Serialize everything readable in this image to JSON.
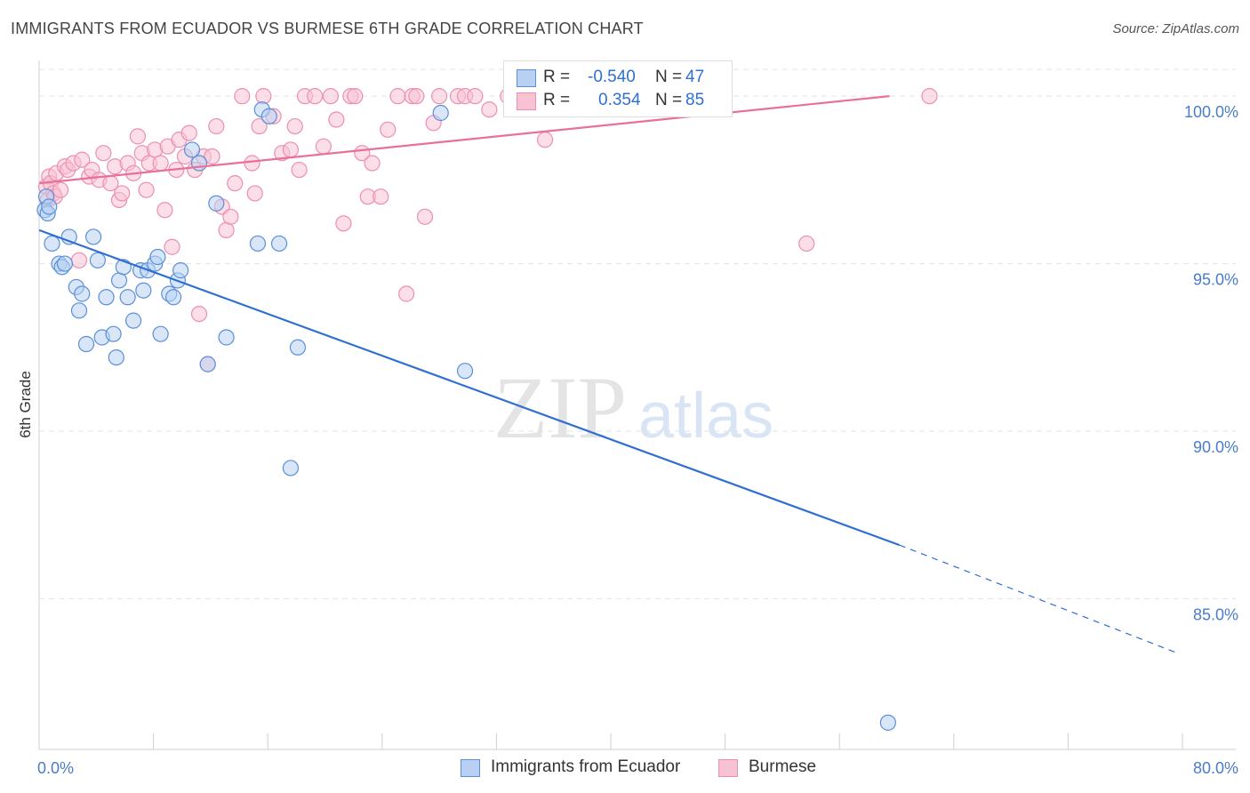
{
  "title": "IMMIGRANTS FROM ECUADOR VS BURMESE 6TH GRADE CORRELATION CHART",
  "source": "Source: ZipAtlas.com",
  "watermark": {
    "zip": "ZIP",
    "atlas": "atlas"
  },
  "colors": {
    "blue": "#2f6fd0",
    "blue_fill": "#b8d1f2",
    "blue_stroke": "#5b8fd8",
    "pink": "#e8709a",
    "pink_fill": "#f7c3d4",
    "pink_stroke": "#ec8fb0",
    "axis_text": "#4a7cc9",
    "grid": "#e3e3e3"
  },
  "legend": {
    "rows": [
      {
        "r_label": "R =",
        "r_value": "-0.540",
        "n_label": "N =",
        "n_value": "47"
      },
      {
        "r_label": "R =",
        "r_value": "0.354",
        "n_label": "N =",
        "n_value": "85"
      }
    ]
  },
  "bottom_legend": [
    "Immigrants from Ecuador",
    "Burmese"
  ],
  "chart_data": {
    "type": "scatter",
    "title": "IMMIGRANTS FROM ECUADOR VS BURMESE 6TH GRADE CORRELATION CHART",
    "xlabel": "",
    "ylabel": "6th Grade",
    "xlim": [
      0,
      80
    ],
    "ylim": [
      80.5,
      100.8
    ],
    "x_tick_labels": [
      "0.0%",
      "80.0%"
    ],
    "y_ticks": [
      {
        "value": 100,
        "label": "100.0%"
      },
      {
        "value": 95,
        "label": "95.0%"
      },
      {
        "value": 90,
        "label": "90.0%"
      },
      {
        "value": 85,
        "label": "85.0%"
      }
    ],
    "grid": true,
    "series": [
      {
        "name": "Immigrants from Ecuador",
        "color": "#2f6fd0",
        "points": [
          [
            0.4,
            96.6
          ],
          [
            0.5,
            97.0
          ],
          [
            0.6,
            96.5
          ],
          [
            0.7,
            96.7
          ],
          [
            0.9,
            95.6
          ],
          [
            1.4,
            95.0
          ],
          [
            1.6,
            94.9
          ],
          [
            1.8,
            95.0
          ],
          [
            2.1,
            95.8
          ],
          [
            2.6,
            94.3
          ],
          [
            2.8,
            93.6
          ],
          [
            3.0,
            94.1
          ],
          [
            3.3,
            92.6
          ],
          [
            3.8,
            95.8
          ],
          [
            4.1,
            95.1
          ],
          [
            4.4,
            92.8
          ],
          [
            4.7,
            94.0
          ],
          [
            5.2,
            92.9
          ],
          [
            5.4,
            92.2
          ],
          [
            5.6,
            94.5
          ],
          [
            5.9,
            94.9
          ],
          [
            6.2,
            94.0
          ],
          [
            6.6,
            93.3
          ],
          [
            7.1,
            94.8
          ],
          [
            7.3,
            94.2
          ],
          [
            7.6,
            94.8
          ],
          [
            8.1,
            95.0
          ],
          [
            8.3,
            95.2
          ],
          [
            8.5,
            92.9
          ],
          [
            9.1,
            94.1
          ],
          [
            9.4,
            94.0
          ],
          [
            9.7,
            94.5
          ],
          [
            9.9,
            94.8
          ],
          [
            10.7,
            98.4
          ],
          [
            11.2,
            98.0
          ],
          [
            11.8,
            92.0
          ],
          [
            12.4,
            96.8
          ],
          [
            13.1,
            92.8
          ],
          [
            15.3,
            95.6
          ],
          [
            15.6,
            99.6
          ],
          [
            16.1,
            99.4
          ],
          [
            16.8,
            95.6
          ],
          [
            17.6,
            88.9
          ],
          [
            18.1,
            92.5
          ],
          [
            28.1,
            99.5
          ],
          [
            29.8,
            91.8
          ],
          [
            59.4,
            81.3
          ]
        ]
      },
      {
        "name": "Burmese",
        "color": "#e8709a",
        "points": [
          [
            0.5,
            97.3
          ],
          [
            0.6,
            96.9
          ],
          [
            0.7,
            97.6
          ],
          [
            0.8,
            97.4
          ],
          [
            1.0,
            97.1
          ],
          [
            1.1,
            97.0
          ],
          [
            1.2,
            97.7
          ],
          [
            1.5,
            97.2
          ],
          [
            1.8,
            97.9
          ],
          [
            2.0,
            97.8
          ],
          [
            2.4,
            98.0
          ],
          [
            2.8,
            95.1
          ],
          [
            3.0,
            98.1
          ],
          [
            3.5,
            97.6
          ],
          [
            3.7,
            97.8
          ],
          [
            4.2,
            97.5
          ],
          [
            4.5,
            98.3
          ],
          [
            5.0,
            97.4
          ],
          [
            5.3,
            97.9
          ],
          [
            5.6,
            96.9
          ],
          [
            5.8,
            97.1
          ],
          [
            6.2,
            98.0
          ],
          [
            6.6,
            97.7
          ],
          [
            6.9,
            98.8
          ],
          [
            7.2,
            98.3
          ],
          [
            7.5,
            97.2
          ],
          [
            7.7,
            98.0
          ],
          [
            8.1,
            98.4
          ],
          [
            8.5,
            98.0
          ],
          [
            8.8,
            96.6
          ],
          [
            9.0,
            98.5
          ],
          [
            9.3,
            95.5
          ],
          [
            9.6,
            97.8
          ],
          [
            9.8,
            98.7
          ],
          [
            10.2,
            98.2
          ],
          [
            10.5,
            98.9
          ],
          [
            10.9,
            97.8
          ],
          [
            11.2,
            93.5
          ],
          [
            11.5,
            98.2
          ],
          [
            11.8,
            92.0
          ],
          [
            12.1,
            98.2
          ],
          [
            12.4,
            99.1
          ],
          [
            12.8,
            96.7
          ],
          [
            13.1,
            96.0
          ],
          [
            13.4,
            96.4
          ],
          [
            13.7,
            97.4
          ],
          [
            14.2,
            100.0
          ],
          [
            14.9,
            98.0
          ],
          [
            15.1,
            97.1
          ],
          [
            15.4,
            99.1
          ],
          [
            15.7,
            100.0
          ],
          [
            16.4,
            99.4
          ],
          [
            17.0,
            98.3
          ],
          [
            17.6,
            98.4
          ],
          [
            17.9,
            99.1
          ],
          [
            18.2,
            97.8
          ],
          [
            18.6,
            100.0
          ],
          [
            19.3,
            100.0
          ],
          [
            19.9,
            98.5
          ],
          [
            20.4,
            100.0
          ],
          [
            20.8,
            99.3
          ],
          [
            21.3,
            96.2
          ],
          [
            21.8,
            100.0
          ],
          [
            22.1,
            100.0
          ],
          [
            22.6,
            98.3
          ],
          [
            23.0,
            97.0
          ],
          [
            23.3,
            98.0
          ],
          [
            23.9,
            97.0
          ],
          [
            24.4,
            99.0
          ],
          [
            25.1,
            100.0
          ],
          [
            25.7,
            94.1
          ],
          [
            26.1,
            100.0
          ],
          [
            26.4,
            100.0
          ],
          [
            27.0,
            96.4
          ],
          [
            27.6,
            99.2
          ],
          [
            28.0,
            100.0
          ],
          [
            29.3,
            100.0
          ],
          [
            29.8,
            100.0
          ],
          [
            30.5,
            100.0
          ],
          [
            31.5,
            99.6
          ],
          [
            32.8,
            100.0
          ],
          [
            34.8,
            100.0
          ],
          [
            35.4,
            98.7
          ],
          [
            53.7,
            95.6
          ],
          [
            62.3,
            100.0
          ]
        ]
      }
    ],
    "trend_lines": [
      {
        "series": "Immigrants from Ecuador",
        "x0": 0,
        "y0": 96.0,
        "x1": 60.2,
        "y1": 86.6,
        "dashed_to_x": 80,
        "dashed_to_y": 83.4
      },
      {
        "series": "Burmese",
        "x0": 0,
        "y0": 97.4,
        "x1": 59.5,
        "y1": 100.0
      }
    ]
  }
}
